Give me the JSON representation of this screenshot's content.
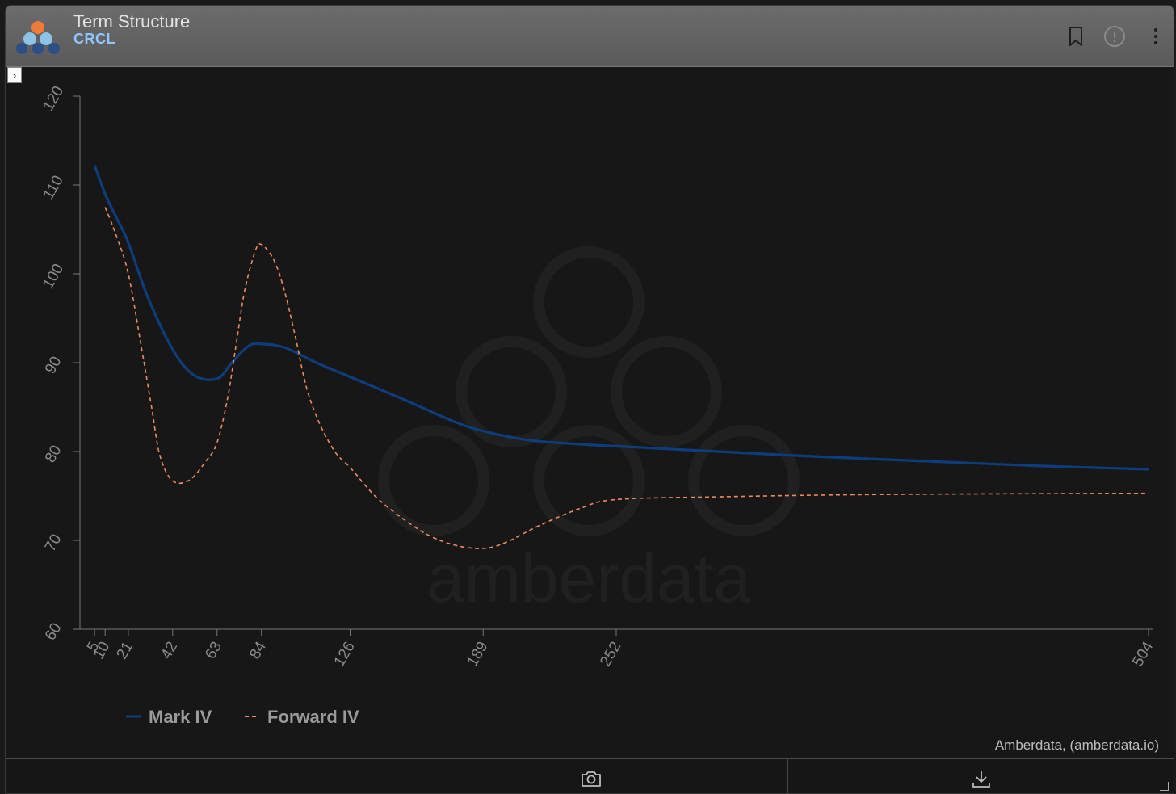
{
  "header": {
    "title": "Term Structure",
    "subtitle": "CRCL"
  },
  "footer": {
    "credit": "Amberdata, (amberdata.io)"
  },
  "watermark": "amberdata",
  "colors": {
    "mark_iv": "#0d3d7c",
    "forward_iv": "#f08a5d",
    "axis": "#777777",
    "tick_text": "#8a8a8a",
    "legend_text": "#9a9a9a"
  },
  "chart_data": {
    "type": "line",
    "title": "",
    "xlabel": "",
    "ylabel": "",
    "ylim": [
      60,
      120
    ],
    "yticks": [
      60,
      70,
      80,
      90,
      100,
      110,
      120
    ],
    "xticks": [
      5,
      10,
      21,
      42,
      63,
      84,
      126,
      189,
      252,
      504
    ],
    "grid": false,
    "legend_position": "bottom-left",
    "series": [
      {
        "name": "Mark IV",
        "style": "solid",
        "x": [
          5,
          10,
          15,
          21,
          30,
          42,
          52,
          63,
          70,
          78,
          84,
          95,
          110,
          126,
          150,
          175,
          189,
          210,
          230,
          252,
          300,
          350,
          400,
          450,
          504
        ],
        "y": [
          112.2,
          109.0,
          106.5,
          103.5,
          97.5,
          91.5,
          88.6,
          88.2,
          90.0,
          91.9,
          92.1,
          91.7,
          90.0,
          88.4,
          86.0,
          83.4,
          82.3,
          81.3,
          80.9,
          80.6,
          80.0,
          79.4,
          78.9,
          78.4,
          78.0
        ]
      },
      {
        "name": "Forward IV",
        "style": "dashed",
        "x": [
          10,
          15,
          21,
          27,
          32,
          36,
          42,
          50,
          58,
          63,
          68,
          72,
          76,
          81,
          84,
          90,
          95,
          100,
          105,
          110,
          115,
          120,
          126,
          140,
          160,
          175,
          189,
          200,
          215,
          235,
          252,
          300,
          350,
          400,
          504
        ],
        "y": [
          107.5,
          104.5,
          100.0,
          92.0,
          85.0,
          79.5,
          76.7,
          76.8,
          79.0,
          81.0,
          86.0,
          92.0,
          98.0,
          102.5,
          103.3,
          101.5,
          98.0,
          93.0,
          87.5,
          84.0,
          81.5,
          79.6,
          78.2,
          74.5,
          71.0,
          69.5,
          69.1,
          69.8,
          71.6,
          73.6,
          74.6,
          74.9,
          75.1,
          75.2,
          75.3
        ]
      }
    ]
  }
}
